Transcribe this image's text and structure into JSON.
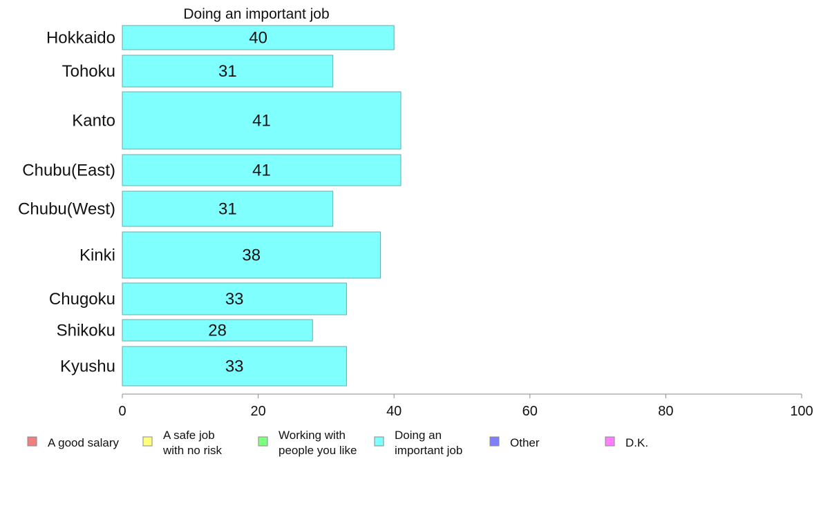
{
  "chart_data": {
    "type": "bar",
    "orientation": "horizontal",
    "title": "Doing an important job",
    "categories": [
      "Hokkaido",
      "Tohoku",
      "Kanto",
      "Chubu(East)",
      "Chubu(West)",
      "Kinki",
      "Chugoku",
      "Shikoku",
      "Kyushu"
    ],
    "values": [
      40,
      31,
      41,
      41,
      31,
      38,
      33,
      28,
      33
    ],
    "value_labels": [
      "40",
      "31",
      "41",
      "41",
      "31",
      "38",
      "33",
      "28",
      "33"
    ],
    "xlim": [
      0,
      100
    ],
    "xticks": [
      0,
      20,
      40,
      60,
      80,
      100
    ],
    "xtick_labels": [
      "0",
      "20",
      "40",
      "60",
      "80",
      "100"
    ],
    "grid": false,
    "bar_color": "#80ffff",
    "bar_edge_color": "#6fa8a8",
    "legend_position": "bottom",
    "legend": [
      {
        "lines": [
          "A good salary"
        ],
        "color": "#f08080"
      },
      {
        "lines": [
          "A safe job",
          "with no risk"
        ],
        "color": "#ffff80"
      },
      {
        "lines": [
          "Working with",
          "people you like"
        ],
        "color": "#80ff80"
      },
      {
        "lines": [
          "Doing an",
          "important job"
        ],
        "color": "#80ffff"
      },
      {
        "lines": [
          "Other"
        ],
        "color": "#8080ff"
      },
      {
        "lines": [
          "D.K."
        ],
        "color": "#ff80ff"
      }
    ]
  }
}
